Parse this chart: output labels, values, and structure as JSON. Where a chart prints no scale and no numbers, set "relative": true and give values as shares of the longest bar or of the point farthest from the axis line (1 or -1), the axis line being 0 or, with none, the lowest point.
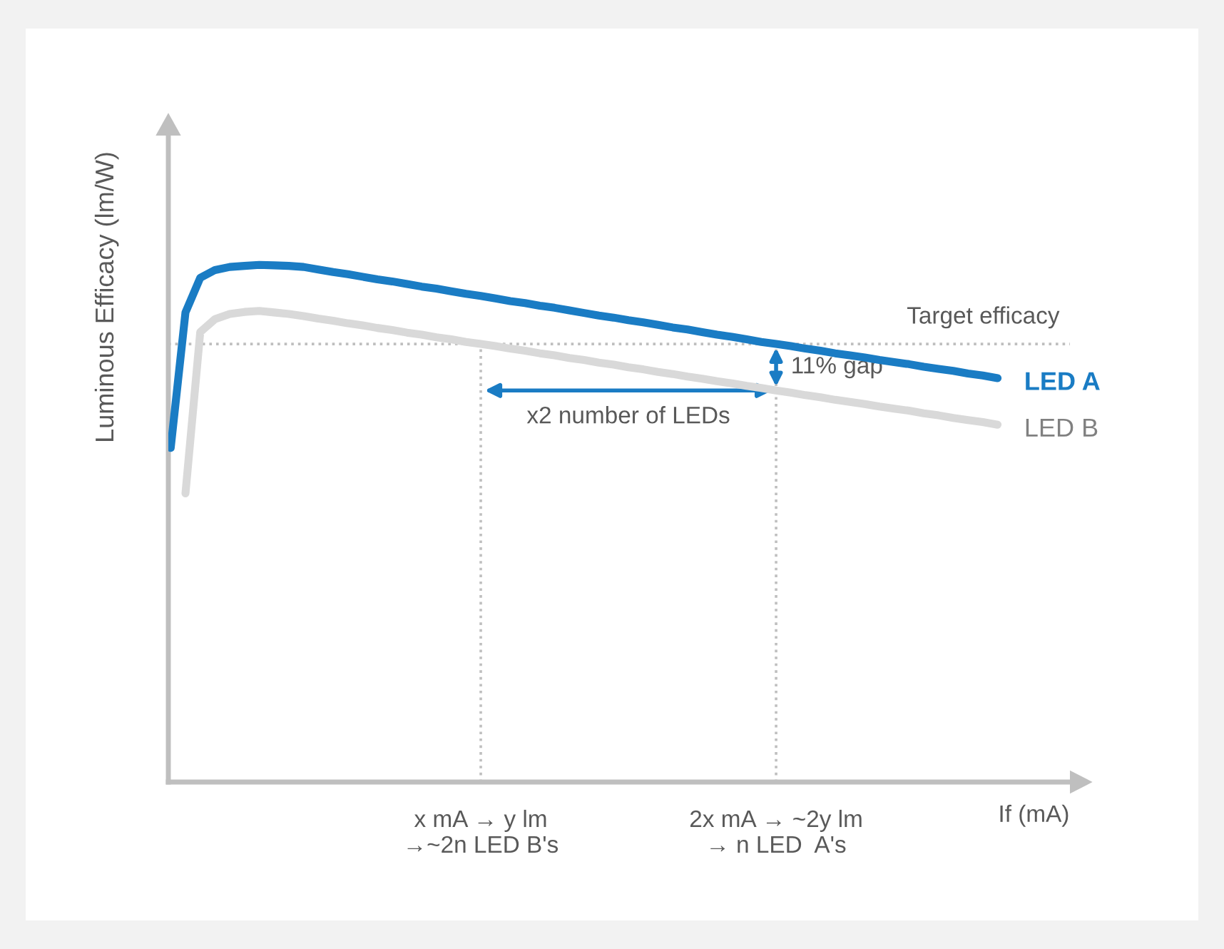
{
  "chart_data": {
    "type": "line",
    "relative": true,
    "ylabel": "Luminous Efficacy (lm/W)",
    "xlabel": "If (mA)",
    "categories": [
      null,
      null,
      null,
      null,
      null,
      null,
      null,
      null,
      null,
      null,
      null,
      null,
      null,
      null,
      null,
      null,
      null,
      null,
      null,
      null,
      null,
      "x mA → y lm\n→~2n LED B's",
      null,
      null,
      null,
      null,
      null,
      null,
      null,
      null,
      null,
      null,
      null,
      null,
      null,
      null,
      null,
      null,
      null,
      null,
      null,
      "2x mA → ~2y lm\n→ n LED  A's",
      null,
      null,
      null,
      null,
      null,
      null,
      null,
      null,
      null,
      null,
      null,
      null,
      null,
      null,
      null
    ],
    "series": [
      {
        "name": "LED A",
        "color": "#1a7cc4",
        "values": [
          0.646,
          0.908,
          0.975,
          0.99,
          0.996,
          0.998,
          1.0,
          0.999,
          0.998,
          0.996,
          0.991,
          0.986,
          0.982,
          0.977,
          0.972,
          0.968,
          0.963,
          0.958,
          0.954,
          0.949,
          0.944,
          0.94,
          0.935,
          0.93,
          0.926,
          0.921,
          0.917,
          0.912,
          0.907,
          0.902,
          0.898,
          0.893,
          0.889,
          0.884,
          0.879,
          0.875,
          0.87,
          0.865,
          0.861,
          0.856,
          0.851,
          0.847,
          0.843,
          0.838,
          0.834,
          0.829,
          0.825,
          0.821,
          0.816,
          0.812,
          0.808,
          0.803,
          0.799,
          0.795,
          0.79,
          0.786,
          0.781
        ]
      },
      {
        "name": "LED B",
        "color": "#d9d9d9",
        "values": [
          null,
          0.558,
          0.87,
          0.895,
          0.905,
          0.909,
          0.911,
          0.908,
          0.905,
          0.901,
          0.896,
          0.892,
          0.887,
          0.883,
          0.878,
          0.874,
          0.869,
          0.865,
          0.86,
          0.856,
          0.851,
          0.847,
          0.843,
          0.838,
          0.834,
          0.829,
          0.825,
          0.82,
          0.816,
          0.811,
          0.807,
          0.802,
          0.798,
          0.793,
          0.789,
          0.784,
          0.78,
          0.775,
          0.771,
          0.766,
          0.762,
          0.757,
          0.753,
          0.748,
          0.744,
          0.739,
          0.735,
          0.731,
          0.726,
          0.722,
          0.718,
          0.713,
          0.709,
          0.704,
          0.7,
          0.696,
          0.691
        ]
      }
    ],
    "ref_lines": [
      {
        "axis": "y",
        "value": 0.847,
        "label": "Target efficacy",
        "color": "#bfbfbf",
        "line_style": "dotted"
      }
    ],
    "annotations": [
      "11% gap",
      "x2 number of LEDs"
    ],
    "grid": "x",
    "legend": false,
    "marker": "none",
    "line_style": "solid"
  }
}
